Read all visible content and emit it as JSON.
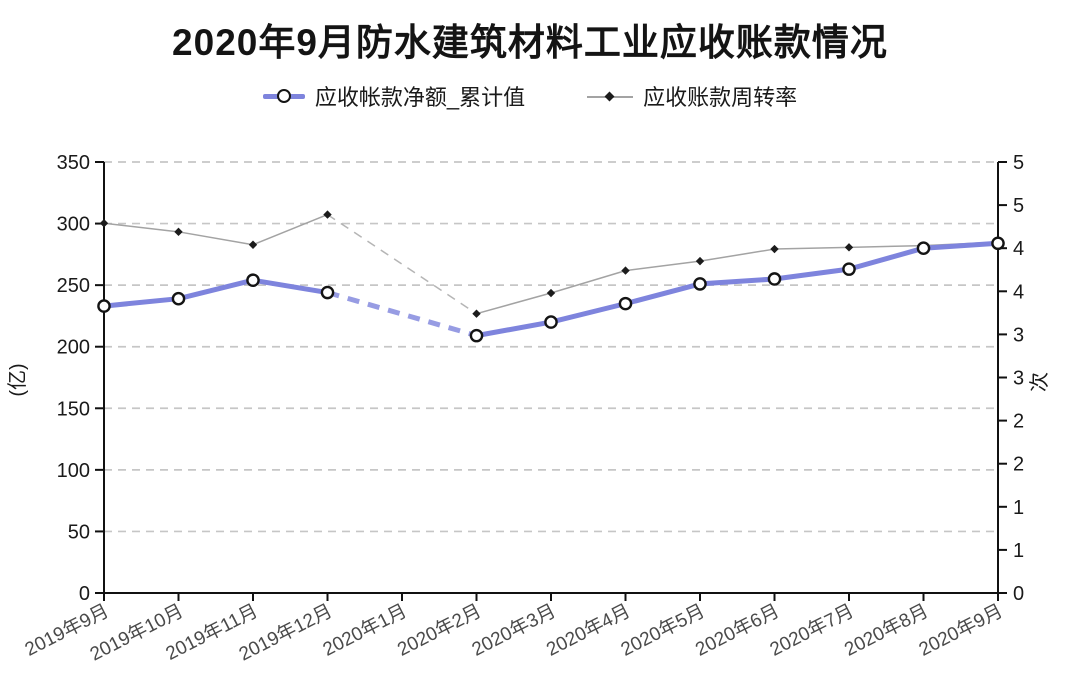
{
  "chart_data": {
    "type": "line",
    "title": "2020年9月防水建筑材料工业应收账款情况",
    "categories": [
      "2019年9月",
      "2019年10月",
      "2019年11月",
      "2019年12月",
      "2020年1月",
      "2020年2月",
      "2020年3月",
      "2020年4月",
      "2020年5月",
      "2020年6月",
      "2020年7月",
      "2020年8月",
      "2020年9月"
    ],
    "series": [
      {
        "name": "应收帐款净额_累计值",
        "axis": "left",
        "unit": "亿",
        "color": "#7e84dd",
        "marker": "circle",
        "values": [
          233,
          239,
          254,
          244,
          null,
          209,
          220,
          235,
          251,
          255,
          263,
          280,
          284
        ]
      },
      {
        "name": "应收账款周转率",
        "axis": "right",
        "unit": "次",
        "color": "#a3a3a3",
        "marker": "diamond",
        "marker_color": "#1c1c1c",
        "values": [
          4.29,
          4.19,
          4.04,
          4.39,
          null,
          3.24,
          3.48,
          3.74,
          3.85,
          3.99,
          4.01,
          4.03,
          4.07
        ]
      }
    ],
    "left_axis": {
      "label": "(亿)",
      "min": 0,
      "max": 350,
      "step": 50,
      "tick_labels": [
        "0",
        "50",
        "100",
        "150",
        "200",
        "250",
        "300",
        "350"
      ]
    },
    "right_axis": {
      "label": "次",
      "min": 0,
      "max": 5,
      "step": 0.5,
      "tick_labels": [
        "0",
        "1",
        "1",
        "2",
        "2",
        "3",
        "3",
        "4",
        "4",
        "5",
        "5"
      ]
    },
    "grid": "horizontal-dashed",
    "legend_position": "top-center",
    "style_colors": {
      "accent_line": "#7e84dd",
      "secondary_line": "#a3a3a3",
      "grid": "#c6c6c6",
      "axis": "#111111",
      "tick_text": "#1a1a1a",
      "x_label_text": "#4a4a4a"
    }
  }
}
